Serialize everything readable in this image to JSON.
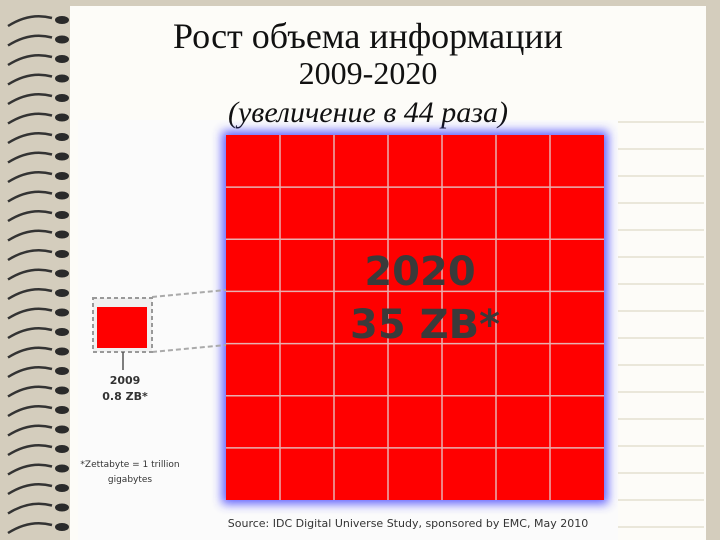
{
  "title": {
    "line1": "Рост объема информации",
    "line2": "2009-2020",
    "line3": "(увеличение в 44 раза)"
  },
  "infographic": {
    "big": {
      "year": "2020",
      "amount": "35 ZB*"
    },
    "small": {
      "year": "2009",
      "amount": "0.8 ZB*"
    },
    "footnote": [
      "*Zettabyte = 1 trillion",
      "gigabytes"
    ],
    "source": "Source: IDC Digital Universe Study, sponsored by EMC, May 2010"
  }
}
